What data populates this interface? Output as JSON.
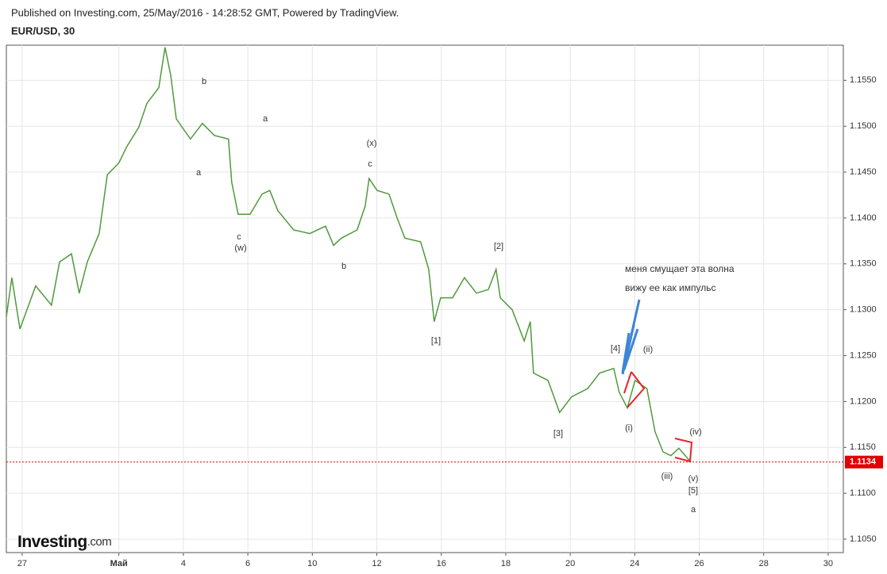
{
  "header": {
    "published": "Published on Investing.com, 25/May/2016 - 14:28:52 GMT, Powered by TradingView.",
    "symbol": "EUR/USD, 30"
  },
  "logo": {
    "name": "Investing",
    "suffix": ".com"
  },
  "chart_data": {
    "type": "line",
    "x": [
      -0.49,
      -0.32,
      -0.07,
      0.42,
      0.91,
      1.16,
      1.53,
      1.77,
      2.02,
      2.39,
      2.64,
      3.0,
      3.25,
      3.62,
      3.87,
      4.24,
      4.43,
      4.61,
      4.78,
      5.22,
      5.59,
      5.96,
      6.4,
      6.5,
      6.7,
      7.07,
      7.44,
      7.68,
      7.93,
      8.42,
      8.92,
      9.41,
      9.66,
      9.9,
      10.39,
      10.64,
      10.76,
      11.01,
      11.38,
      11.63,
      11.87,
      12.36,
      12.61,
      12.78,
      12.98,
      13.35,
      13.72,
      14.09,
      14.46,
      14.7,
      14.83,
      15.2,
      15.57,
      15.76,
      15.86,
      16.31,
      16.67,
      17.04,
      17.54,
      17.91,
      18.35,
      18.52,
      18.77,
      19.01,
      19.38,
      19.63,
      19.88,
      20.12,
      20.37,
      20.74
    ],
    "values": [
      1.1292,
      1.1335,
      1.1279,
      1.1326,
      1.1305,
      1.1352,
      1.1361,
      1.1318,
      1.1352,
      1.1383,
      1.1447,
      1.146,
      1.1478,
      1.1499,
      1.1525,
      1.1542,
      1.1586,
      1.1555,
      1.1508,
      1.1486,
      1.1503,
      1.149,
      1.1486,
      1.1439,
      1.1404,
      1.1404,
      1.1426,
      1.143,
      1.1408,
      1.1387,
      1.1383,
      1.1391,
      1.137,
      1.1378,
      1.1387,
      1.1413,
      1.1443,
      1.143,
      1.1426,
      1.14,
      1.1378,
      1.1374,
      1.1344,
      1.1287,
      1.1313,
      1.1313,
      1.1335,
      1.1318,
      1.1322,
      1.1344,
      1.1313,
      1.13,
      1.1266,
      1.1287,
      1.1231,
      1.1223,
      1.1188,
      1.1205,
      1.1214,
      1.1231,
      1.1236,
      1.121,
      1.1193,
      1.1223,
      1.1214,
      1.1167,
      1.1145,
      1.1141,
      1.1149,
      1.1134
    ],
    "color": "#4f9a3a",
    "xlim": [
      -0.49,
      25.47
    ],
    "xticks": [
      {
        "value": 0,
        "label": "27"
      },
      {
        "value": 3,
        "label": "Май"
      },
      {
        "value": 5,
        "label": "4"
      },
      {
        "value": 7,
        "label": "6"
      },
      {
        "value": 9,
        "label": "10"
      },
      {
        "value": 11,
        "label": "12"
      },
      {
        "value": 13,
        "label": "16"
      },
      {
        "value": 15,
        "label": "18"
      },
      {
        "value": 17,
        "label": "20"
      },
      {
        "value": 19,
        "label": "24"
      },
      {
        "value": 21,
        "label": "26"
      },
      {
        "value": 23,
        "label": "28"
      },
      {
        "value": 25,
        "label": "30"
      }
    ],
    "ylim": [
      1.10353,
      1.15883
    ],
    "yticks": [
      {
        "value": 1.105,
        "label": "1.1050"
      },
      {
        "value": 1.11,
        "label": "1.1100"
      },
      {
        "value": 1.115,
        "label": "1.1150"
      },
      {
        "value": 1.12,
        "label": "1.1200"
      },
      {
        "value": 1.125,
        "label": "1.1250"
      },
      {
        "value": 1.13,
        "label": "1.1300"
      },
      {
        "value": 1.135,
        "label": "1.1350"
      },
      {
        "value": 1.14,
        "label": "1.1400"
      },
      {
        "value": 1.145,
        "label": "1.1450"
      },
      {
        "value": 1.15,
        "label": "1.1500"
      },
      {
        "value": 1.155,
        "label": "1.1550"
      }
    ],
    "grid": true,
    "last_price": 1.1134,
    "last_price_color": "#e50000",
    "annotations": [
      "b",
      "a",
      "(x)",
      "c",
      "a",
      "c",
      "(w)",
      "b",
      "[2]",
      "[1]",
      "[4]",
      "(ii)",
      "[3]",
      "(i)",
      "(iv)",
      "(iii)",
      "(v)",
      "[5]",
      "a",
      "меня смущает эта волна",
      "вижу ее как импульс"
    ]
  }
}
